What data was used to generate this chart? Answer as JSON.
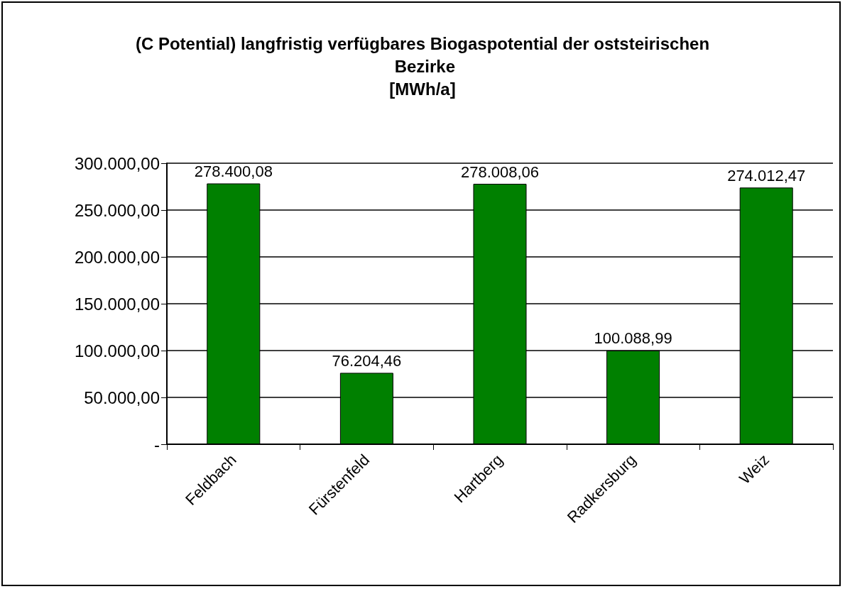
{
  "chart_data": {
    "type": "bar",
    "title": "(C Potential) langfristig verfügbares Biogaspotential der oststeirischen Bezirke\n[MWh/a]",
    "categories": [
      "Feldbach",
      "Fürstenfeld",
      "Hartberg",
      "Radkersburg",
      "Weiz"
    ],
    "values": [
      278400.08,
      76204.46,
      278008.06,
      100088.99,
      274012.47
    ],
    "value_labels": [
      "278.400,08",
      "76.204,46",
      "278.008,06",
      "100.088,99",
      "274.012,47"
    ],
    "color": "#008000",
    "ylim": [
      0,
      300000
    ],
    "yticks": [
      {
        "value": 0,
        "label": "-"
      },
      {
        "value": 50000,
        "label": "50.000,00"
      },
      {
        "value": 100000,
        "label": "100.000,00"
      },
      {
        "value": 150000,
        "label": "150.000,00"
      },
      {
        "value": 200000,
        "label": "200.000,00"
      },
      {
        "value": 250000,
        "label": "250.000,00"
      },
      {
        "value": 300000,
        "label": "300.000,00"
      }
    ],
    "grid": "y"
  }
}
